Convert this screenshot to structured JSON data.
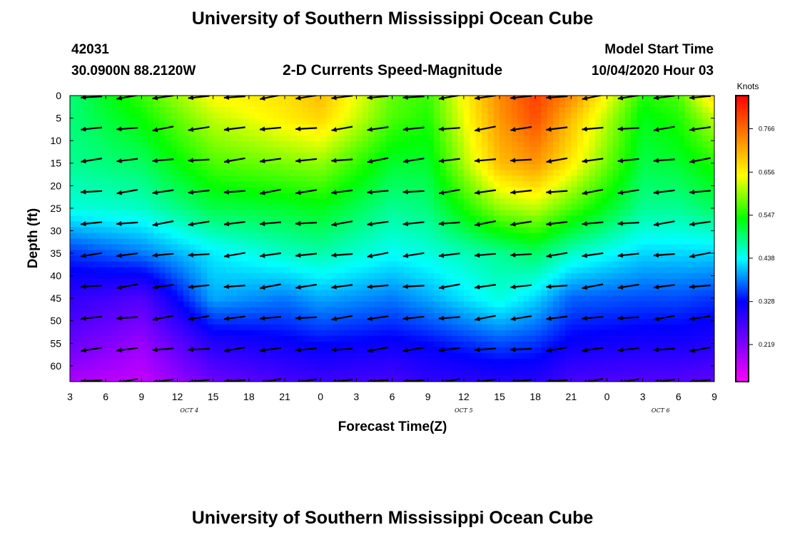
{
  "header": {
    "title": "University of Southern Mississippi Ocean Cube",
    "station_id": "42031",
    "station_location": "30.0900N 88.2120W",
    "plot_title": "2-D Currents Speed-Magnitude",
    "model_start_label": "Model Start Time",
    "model_start_value": "10/04/2020 Hour 03"
  },
  "footer": {
    "title": "University of Southern Mississippi Ocean Cube"
  },
  "chart_data": {
    "type": "heatmap",
    "title": "2-D Currents Speed-Magnitude",
    "xlabel": "Forecast Time(Z)",
    "ylabel": "Depth (ft)",
    "x_tick_labels": [
      "3",
      "6",
      "9",
      "12",
      "15",
      "18",
      "21",
      "0",
      "3",
      "6",
      "9",
      "12",
      "15",
      "18",
      "21",
      "0",
      "3",
      "6",
      "9"
    ],
    "x_hours_from_start": [
      0,
      3,
      6,
      9,
      12,
      15,
      18,
      21,
      24,
      27,
      30,
      33,
      36,
      39,
      42,
      45,
      48,
      51,
      54
    ],
    "date_labels": [
      {
        "text": "OCT 4",
        "hour": 10
      },
      {
        "text": "OCT 5",
        "hour": 33
      },
      {
        "text": "OCT 6",
        "hour": 49.5
      }
    ],
    "y_ticks": [
      0,
      5,
      10,
      15,
      20,
      25,
      30,
      35,
      40,
      45,
      50,
      55,
      60
    ],
    "ylim": [
      0,
      63.5
    ],
    "y_inverted": true,
    "colorbar": {
      "label": "Knots",
      "tick_labels": [
        "0.766",
        "0.656",
        "0.547",
        "0.438",
        "0.328",
        "0.219"
      ],
      "tick_values": [
        0.766,
        0.656,
        0.547,
        0.438,
        0.328,
        0.219
      ],
      "range": [
        0.125,
        0.85
      ],
      "colors": [
        "#ff00ff",
        "#8000ff",
        "#0000ff",
        "#00ffff",
        "#00ff00",
        "#ffff00",
        "#ff8000",
        "#ff0000"
      ]
    },
    "speed_profiles": [
      {
        "hour": 0,
        "depths": [
          0,
          5,
          15,
          25,
          35,
          45,
          55,
          63
        ],
        "speed": [
          0.49,
          0.49,
          0.48,
          0.45,
          0.35,
          0.29,
          0.24,
          0.19
        ]
      },
      {
        "hour": 6,
        "depths": [
          0,
          5,
          15,
          25,
          35,
          45,
          55,
          63
        ],
        "speed": [
          0.56,
          0.54,
          0.5,
          0.46,
          0.38,
          0.26,
          0.2,
          0.17
        ]
      },
      {
        "hour": 12,
        "depths": [
          0,
          5,
          15,
          25,
          35,
          45,
          55,
          63
        ],
        "speed": [
          0.65,
          0.62,
          0.57,
          0.51,
          0.43,
          0.4,
          0.3,
          0.24
        ]
      },
      {
        "hour": 18,
        "depths": [
          0,
          5,
          15,
          25,
          35,
          45,
          55,
          63
        ],
        "speed": [
          0.67,
          0.66,
          0.59,
          0.52,
          0.46,
          0.38,
          0.32,
          0.27
        ]
      },
      {
        "hour": 21,
        "depths": [
          0,
          5,
          15,
          25,
          35,
          45,
          55,
          63
        ],
        "speed": [
          0.7,
          0.68,
          0.6,
          0.53,
          0.47,
          0.4,
          0.33,
          0.28
        ]
      },
      {
        "hour": 27,
        "depths": [
          0,
          5,
          15,
          25,
          35,
          45,
          55,
          63
        ],
        "speed": [
          0.58,
          0.57,
          0.52,
          0.48,
          0.44,
          0.38,
          0.32,
          0.27
        ]
      },
      {
        "hour": 30,
        "depths": [
          0,
          5,
          15,
          25,
          35,
          45,
          55,
          63
        ],
        "speed": [
          0.56,
          0.55,
          0.52,
          0.49,
          0.45,
          0.4,
          0.33,
          0.29
        ]
      },
      {
        "hour": 36,
        "depths": [
          0,
          5,
          15,
          25,
          35,
          45,
          55,
          63
        ],
        "speed": [
          0.74,
          0.73,
          0.7,
          0.6,
          0.48,
          0.45,
          0.36,
          0.3
        ]
      },
      {
        "hour": 39,
        "depths": [
          0,
          5,
          15,
          25,
          35,
          45,
          55,
          63
        ],
        "speed": [
          0.8,
          0.79,
          0.73,
          0.62,
          0.5,
          0.42,
          0.35,
          0.3
        ]
      },
      {
        "hour": 42,
        "depths": [
          0,
          5,
          15,
          25,
          35,
          45,
          55,
          63
        ],
        "speed": [
          0.74,
          0.7,
          0.66,
          0.57,
          0.46,
          0.37,
          0.32,
          0.27
        ]
      },
      {
        "hour": 48,
        "depths": [
          0,
          5,
          15,
          25,
          35,
          45,
          55,
          63
        ],
        "speed": [
          0.55,
          0.53,
          0.51,
          0.48,
          0.42,
          0.36,
          0.31,
          0.26
        ]
      },
      {
        "hour": 51,
        "depths": [
          0,
          5,
          15,
          25,
          35,
          45,
          55,
          63
        ],
        "speed": [
          0.57,
          0.55,
          0.52,
          0.48,
          0.42,
          0.36,
          0.31,
          0.26
        ]
      },
      {
        "hour": 54,
        "depths": [
          0,
          5,
          15,
          25,
          35,
          45,
          55,
          63
        ],
        "speed": [
          0.68,
          0.62,
          0.55,
          0.5,
          0.42,
          0.35,
          0.3,
          0.25
        ]
      }
    ],
    "vectors": {
      "hours": [
        1.5,
        4.5,
        7.5,
        10.5,
        13.5,
        16.5,
        19.5,
        22.5,
        25.5,
        28.5,
        31.5,
        34.5,
        37.5,
        40.5,
        43.5,
        46.5,
        49.5,
        52.5
      ],
      "depths": [
        0,
        7,
        14,
        21,
        28,
        35,
        42,
        49,
        56,
        63
      ],
      "direction": "west-southwest to west",
      "angle_deg_default": 186
    }
  }
}
